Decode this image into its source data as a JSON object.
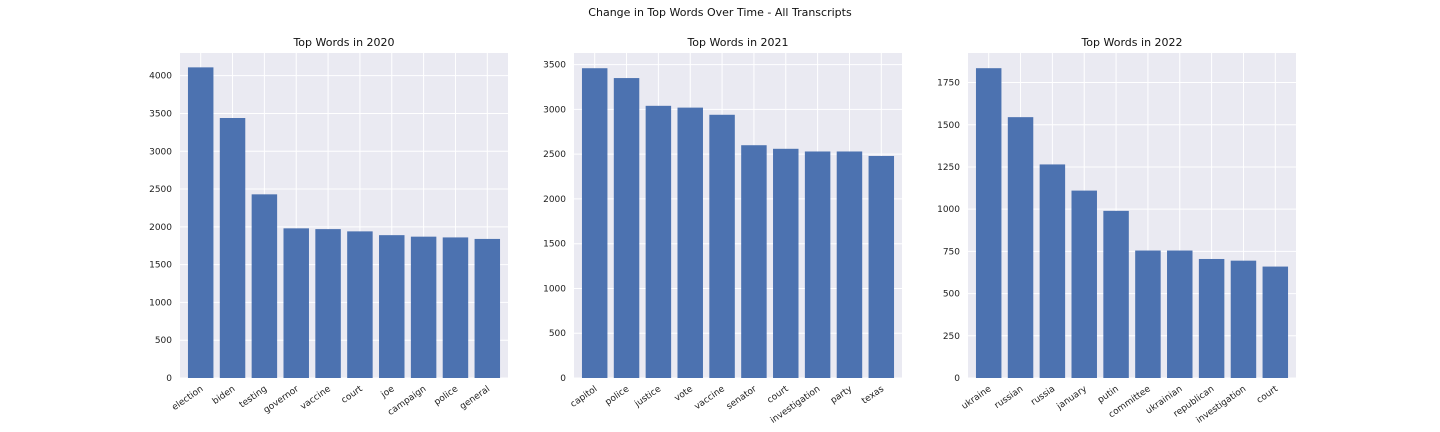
{
  "figure": {
    "suptitle": "Change in Top Words Over Time - All Transcripts",
    "colors": {
      "bar": "#4c72b0",
      "plot_bg": "#eaeaf2",
      "grid": "#ffffff"
    }
  },
  "chart_data": [
    {
      "type": "bar",
      "title": "Top Words in 2020",
      "xlabel": "",
      "ylabel": "",
      "categories": [
        "election",
        "biden",
        "testing",
        "governor",
        "vaccine",
        "court",
        "joe",
        "campaign",
        "police",
        "general"
      ],
      "values": [
        4110,
        3440,
        2430,
        1980,
        1970,
        1940,
        1890,
        1870,
        1860,
        1840
      ],
      "ylim": [
        0,
        4300
      ],
      "yticks": [
        0,
        500,
        1000,
        1500,
        2000,
        2500,
        3000,
        3500,
        4000
      ],
      "grid": true
    },
    {
      "type": "bar",
      "title": "Top Words in 2021",
      "xlabel": "",
      "ylabel": "",
      "categories": [
        "capitol",
        "police",
        "justice",
        "vote",
        "vaccine",
        "senator",
        "court",
        "investigation",
        "party",
        "texas"
      ],
      "values": [
        3460,
        3350,
        3040,
        3020,
        2940,
        2600,
        2560,
        2530,
        2530,
        2480
      ],
      "ylim": [
        0,
        3630
      ],
      "yticks": [
        0,
        500,
        1000,
        1500,
        2000,
        2500,
        3000,
        3500
      ],
      "grid": true
    },
    {
      "type": "bar",
      "title": "Top Words in 2022",
      "xlabel": "",
      "ylabel": "",
      "categories": [
        "ukraine",
        "russian",
        "russia",
        "january",
        "putin",
        "committee",
        "ukrainian",
        "republican",
        "investigation",
        "court"
      ],
      "values": [
        1835,
        1545,
        1265,
        1110,
        990,
        755,
        755,
        705,
        695,
        660
      ],
      "ylim": [
        0,
        1925
      ],
      "yticks": [
        0,
        250,
        500,
        750,
        1000,
        1250,
        1500,
        1750
      ],
      "grid": true
    }
  ]
}
